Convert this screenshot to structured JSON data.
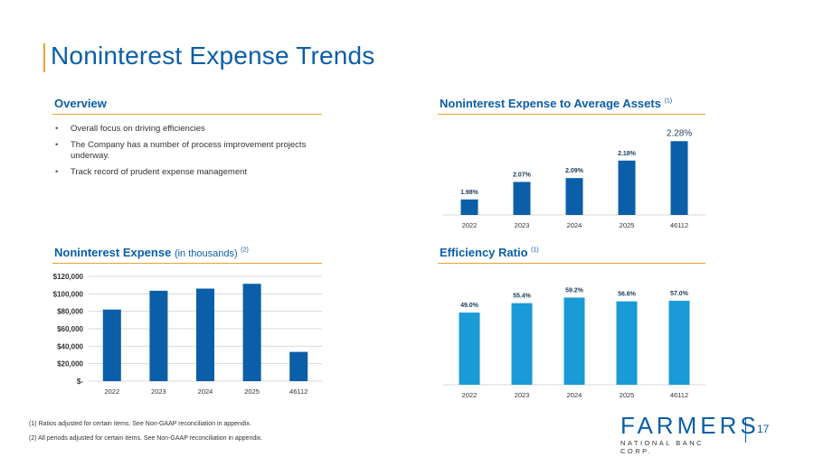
{
  "page": {
    "title": "Noninterest Expense Trends",
    "page_number": "17"
  },
  "overview": {
    "heading": "Overview",
    "bullets": [
      "Overall focus on driving efficiencies",
      "The Company has a number of process improvement projects underway.",
      "Track record of prudent expense management"
    ]
  },
  "headings": {
    "expense_title": "Noninterest Expense",
    "expense_sub": "(in thousands)",
    "expense_note": "(2)",
    "ratio_assets_title": "Noninterest Expense to Average Assets",
    "ratio_assets_note": "(1)",
    "efficiency_title": "Efficiency Ratio",
    "efficiency_note": "(1)"
  },
  "footnotes": [
    "(1) Ratios adjusted for certain items. See Non-GAAP reconciliation in appendix.",
    "(2) All periods adjusted for certain items. See Non-GAAP reconciliation in appendix."
  ],
  "logo": {
    "name": "FARMERS",
    "tagline": "NATIONAL BANC CORP."
  },
  "colors": {
    "brand_blue": "#0b5ea8",
    "accent_gold": "#e8a23a",
    "efficiency_bar": "#1a9ad6",
    "grid": "#d9d9d9"
  },
  "chart_data": [
    {
      "id": "expense_to_assets",
      "type": "bar",
      "title": "Noninterest Expense to Average Assets (1)",
      "categories": [
        "2022",
        "2023",
        "2024",
        "2025",
        "46112"
      ],
      "values": [
        1.98,
        2.07,
        2.09,
        2.18,
        2.28
      ],
      "labels": [
        "1.98%",
        "2.07%",
        "2.09%",
        "2.18%",
        "2.28%"
      ],
      "ylim": [
        1.9,
        2.3
      ],
      "grid": false
    },
    {
      "id": "noninterest_expense",
      "type": "bar",
      "title": "Noninterest Expense (in thousands) (2)",
      "categories": [
        "2022",
        "2023",
        "2024",
        "2025",
        "46112"
      ],
      "values": [
        82000,
        103500,
        106000,
        111500,
        33500
      ],
      "ylim": [
        0,
        120000
      ],
      "yticks": [
        0,
        20000,
        40000,
        60000,
        80000,
        100000,
        120000
      ],
      "ytick_labels": [
        "$-",
        "$20,000",
        "$40,000",
        "$60,000",
        "$80,000",
        "$100,000",
        "$120,000"
      ],
      "grid": true
    },
    {
      "id": "efficiency_ratio",
      "type": "bar",
      "title": "Efficiency Ratio (1)",
      "categories": [
        "2022",
        "2023",
        "2024",
        "2025",
        "46112"
      ],
      "values": [
        49.0,
        55.4,
        59.2,
        56.6,
        57.0
      ],
      "labels": [
        "49.0%",
        "55.4%",
        "59.2%",
        "56.6%",
        "57.0%"
      ],
      "ylim": [
        0,
        65
      ],
      "grid": false
    }
  ]
}
